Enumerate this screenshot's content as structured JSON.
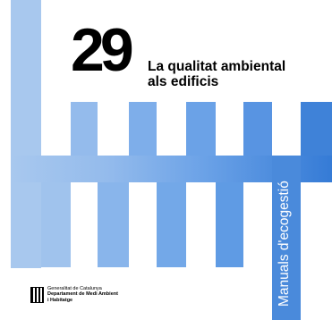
{
  "cover": {
    "number": "29",
    "title_line1": "La qualitat ambiental",
    "title_line2": "als edificis",
    "series_name": "Manuals d'ecogestió",
    "publisher_line1": "Generalitat de Catalunya",
    "publisher_line2": "Departament de Medi Ambient",
    "publisher_line3": "i Habitatge"
  },
  "colors": {
    "background": "#ffffff",
    "bar_shades": [
      "#a8c8ee",
      "#94bbec",
      "#7eaeea",
      "#6ba2e7",
      "#5894e2",
      "#4a8adb",
      "#3f82d8",
      "#357bd6"
    ],
    "text": "#000000",
    "series_text": "#ffffff"
  },
  "icons": {
    "logo": "generalitat-logo-icon"
  }
}
